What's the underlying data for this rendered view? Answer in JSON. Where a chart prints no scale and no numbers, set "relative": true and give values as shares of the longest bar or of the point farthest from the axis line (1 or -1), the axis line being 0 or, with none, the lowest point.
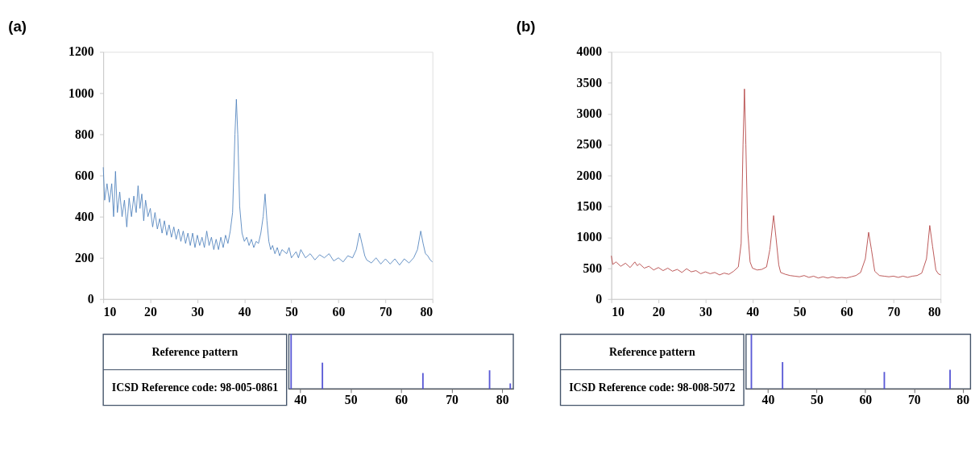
{
  "chart_data": [
    {
      "type": "line",
      "title": "(a)",
      "xlim": [
        10,
        80
      ],
      "xticks": [
        10,
        20,
        30,
        40,
        50,
        60,
        70,
        80
      ],
      "ylim": [
        0,
        1200
      ],
      "yticks": [
        0,
        200,
        400,
        600,
        800,
        1000,
        1200
      ],
      "grid": false,
      "series": [
        {
          "color": "#4a7ebb",
          "x": [
            10,
            10.3,
            10.8,
            11.3,
            11.8,
            12.2,
            12.6,
            13,
            13.5,
            14,
            14.5,
            15,
            15.5,
            16,
            16.5,
            17,
            17.4,
            17.8,
            18.2,
            18.6,
            19,
            19.5,
            20,
            20.5,
            21,
            21.5,
            22,
            22.5,
            23,
            23.5,
            24,
            24.5,
            25,
            25.5,
            26,
            26.5,
            27,
            27.5,
            28,
            28.5,
            29,
            29.5,
            30,
            30.5,
            31,
            31.5,
            32,
            32.5,
            33,
            33.5,
            34,
            34.5,
            35,
            35.5,
            36,
            36.5,
            37,
            37.5,
            38,
            38.3,
            38.6,
            39,
            39.5,
            40,
            40.5,
            41,
            41.5,
            42,
            42.5,
            43,
            43.5,
            44,
            44.4,
            44.8,
            45.2,
            45.6,
            46,
            46.5,
            47,
            47.5,
            48,
            49,
            49.5,
            50,
            51,
            51.5,
            52,
            53,
            54,
            55,
            56,
            57,
            58,
            59,
            60,
            61,
            62,
            63,
            63.8,
            64.5,
            65,
            65.6,
            66,
            67,
            68,
            69,
            70,
            71,
            72,
            73,
            74,
            75,
            76,
            76.8,
            77.5,
            78,
            78.5,
            79,
            79.5,
            80
          ],
          "values": [
            640,
            480,
            560,
            470,
            560,
            400,
            620,
            420,
            520,
            400,
            480,
            350,
            490,
            400,
            500,
            420,
            550,
            440,
            510,
            380,
            480,
            400,
            440,
            350,
            420,
            340,
            390,
            320,
            380,
            310,
            360,
            300,
            350,
            290,
            340,
            280,
            330,
            270,
            320,
            260,
            320,
            250,
            310,
            260,
            300,
            250,
            330,
            260,
            300,
            240,
            290,
            240,
            300,
            250,
            310,
            270,
            330,
            420,
            800,
            970,
            800,
            450,
            320,
            280,
            300,
            260,
            290,
            250,
            280,
            270,
            320,
            400,
            510,
            380,
            280,
            240,
            260,
            220,
            250,
            210,
            240,
            220,
            250,
            200,
            230,
            200,
            240,
            200,
            220,
            190,
            215,
            200,
            220,
            185,
            200,
            180,
            210,
            200,
            240,
            320,
            270,
            210,
            190,
            175,
            200,
            170,
            195,
            170,
            195,
            165,
            195,
            175,
            200,
            240,
            330,
            270,
            220,
            210,
            190,
            180
          ]
        }
      ]
    },
    {
      "type": "line",
      "title": "(b)",
      "xlim": [
        10,
        80
      ],
      "xticks": [
        10,
        20,
        30,
        40,
        50,
        60,
        70,
        80
      ],
      "ylim": [
        0,
        4000
      ],
      "yticks": [
        0,
        500,
        1000,
        1500,
        2000,
        2500,
        3000,
        3500,
        4000
      ],
      "grid": false,
      "series": [
        {
          "color": "#b03a3a",
          "x": [
            10,
            10.3,
            11,
            12,
            13,
            14,
            15,
            15.5,
            16,
            17,
            18,
            19,
            20,
            21,
            22,
            23,
            24,
            25,
            26,
            27,
            28,
            29,
            30,
            31,
            32,
            33,
            34,
            35,
            36,
            37,
            37.6,
            38,
            38.3,
            38.6,
            39,
            39.5,
            40,
            41,
            42,
            43,
            43.7,
            44.5,
            45,
            45.6,
            46,
            47,
            48,
            49,
            50,
            51,
            52,
            53,
            54,
            55,
            56,
            57,
            58,
            59,
            60,
            61,
            62,
            63,
            64,
            64.7,
            65.3,
            66,
            67,
            68,
            69,
            70,
            71,
            72,
            73,
            74,
            75,
            76,
            77,
            77.7,
            78.3,
            79,
            79.5,
            80
          ],
          "values": [
            700,
            560,
            600,
            530,
            580,
            510,
            600,
            540,
            570,
            500,
            530,
            470,
            510,
            460,
            500,
            450,
            480,
            430,
            490,
            440,
            460,
            410,
            440,
            410,
            430,
            390,
            420,
            400,
            450,
            520,
            900,
            2500,
            3400,
            2500,
            1100,
            600,
            500,
            470,
            480,
            520,
            800,
            1350,
            1000,
            550,
            430,
            400,
            380,
            370,
            360,
            380,
            350,
            370,
            340,
            360,
            340,
            360,
            340,
            350,
            340,
            360,
            380,
            430,
            650,
            1080,
            800,
            450,
            380,
            370,
            360,
            370,
            350,
            370,
            350,
            370,
            380,
            420,
            650,
            1190,
            850,
            470,
            410,
            390
          ]
        }
      ]
    },
    {
      "type": "bar",
      "relative": true,
      "tick_labels": "x",
      "xlim": [
        37.75,
        82.2
      ],
      "xticks": [
        40,
        50,
        60,
        70,
        80
      ],
      "color": "#5a5ad6",
      "x": [
        38.2,
        44.4,
        64.3,
        77.5,
        81.6
      ],
      "values": [
        1,
        0.48,
        0.29,
        0.34,
        0.1
      ],
      "annotations": [
        "Reference pattern",
        "ICSD Reference code: 98-005-0861"
      ]
    },
    {
      "type": "bar",
      "relative": true,
      "tick_labels": "x",
      "xlim": [
        35.5,
        81.6
      ],
      "xticks": [
        40,
        50,
        60,
        70,
        80
      ],
      "color": "#5a5ad6",
      "x": [
        36.6,
        43.0,
        63.9,
        77.4
      ],
      "values": [
        1,
        0.49,
        0.31,
        0.35
      ],
      "annotations": [
        "Reference pattern",
        "ICSD Reference code: 98-008-5072"
      ]
    }
  ]
}
